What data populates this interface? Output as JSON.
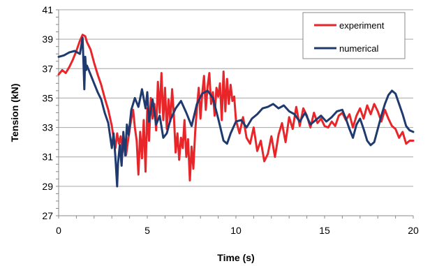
{
  "chart_data": {
    "type": "line",
    "title": "",
    "xlabel": "Time (s)",
    "ylabel": "Tension (kN)",
    "xlim": [
      0,
      20
    ],
    "ylim": [
      27,
      41
    ],
    "xticks": [
      0,
      5,
      10,
      15,
      20
    ],
    "yticks": [
      27,
      29,
      31,
      33,
      35,
      37,
      39,
      41
    ],
    "grid": "horizontal",
    "legend_position": "top-right",
    "series": [
      {
        "name": "experiment",
        "color": "#e8262a",
        "x": [
          0,
          0.2,
          0.4,
          0.6,
          0.8,
          1.0,
          1.2,
          1.35,
          1.5,
          1.6,
          1.8,
          2.0,
          2.2,
          2.4,
          2.6,
          2.8,
          3.0,
          3.1,
          3.2,
          3.3,
          3.4,
          3.5,
          3.6,
          3.7,
          3.8,
          3.9,
          4.0,
          4.1,
          4.2,
          4.3,
          4.4,
          4.5,
          4.6,
          4.7,
          4.8,
          4.9,
          5.0,
          5.1,
          5.2,
          5.3,
          5.4,
          5.5,
          5.6,
          5.7,
          5.8,
          5.9,
          6.0,
          6.1,
          6.2,
          6.3,
          6.4,
          6.5,
          6.6,
          6.7,
          6.8,
          6.9,
          7.0,
          7.1,
          7.2,
          7.3,
          7.4,
          7.5,
          7.6,
          7.7,
          7.8,
          7.9,
          8.0,
          8.1,
          8.2,
          8.3,
          8.4,
          8.5,
          8.6,
          8.7,
          8.8,
          8.9,
          9.0,
          9.1,
          9.2,
          9.3,
          9.4,
          9.5,
          9.6,
          9.7,
          9.8,
          9.9,
          10.0,
          10.2,
          10.4,
          10.6,
          10.8,
          11.0,
          11.2,
          11.4,
          11.6,
          11.8,
          12.0,
          12.2,
          12.4,
          12.6,
          12.8,
          13.0,
          13.2,
          13.4,
          13.6,
          13.8,
          14.0,
          14.2,
          14.4,
          14.6,
          14.8,
          15.0,
          15.2,
          15.4,
          15.6,
          15.8,
          16.0,
          16.2,
          16.4,
          16.6,
          16.8,
          17.0,
          17.2,
          17.4,
          17.6,
          17.8,
          18.0,
          18.2,
          18.4,
          18.6,
          18.8,
          19.0,
          19.2,
          19.4,
          19.6,
          19.8,
          20.0
        ],
        "values": [
          36.6,
          36.9,
          36.7,
          37.1,
          37.6,
          38.2,
          38.9,
          39.3,
          39.2,
          38.8,
          38.3,
          37.4,
          36.6,
          35.9,
          35.0,
          34.2,
          33.1,
          32.3,
          31.6,
          32.6,
          31.9,
          32.4,
          31.3,
          32.2,
          31.1,
          32.0,
          32.8,
          33.6,
          34.2,
          33.0,
          32.1,
          29.8,
          32.7,
          30.9,
          33.5,
          30.0,
          34.3,
          32.1,
          35.0,
          33.6,
          34.6,
          32.8,
          36.1,
          34.0,
          36.7,
          33.5,
          35.7,
          32.9,
          34.9,
          33.4,
          35.6,
          33.8,
          31.3,
          32.6,
          30.8,
          32.3,
          31.6,
          33.5,
          31.0,
          32.2,
          29.4,
          31.7,
          30.2,
          32.7,
          34.3,
          35.7,
          33.6,
          35.3,
          36.5,
          34.2,
          35.8,
          36.7,
          34.6,
          35.4,
          33.8,
          35.7,
          35.1,
          36.0,
          33.5,
          36.8,
          34.1,
          36.3,
          34.6,
          35.9,
          34.8,
          35.1,
          33.5,
          32.6,
          33.7,
          32.3,
          31.9,
          33.0,
          31.4,
          32.1,
          30.7,
          31.2,
          32.4,
          31.0,
          32.5,
          33.3,
          32.0,
          33.7,
          32.9,
          34.4,
          33.1,
          34.3,
          33.8,
          33.0,
          34.0,
          33.3,
          33.6,
          33.1,
          33.0,
          33.4,
          33.1,
          33.8,
          34.0,
          33.5,
          33.9,
          33.0,
          33.8,
          34.3,
          33.6,
          34.5,
          33.9,
          34.6,
          34.1,
          33.4,
          34.2,
          33.6,
          33.1,
          32.9,
          32.3,
          32.7,
          31.9,
          32.1,
          32.1
        ]
      },
      {
        "name": "numerical",
        "color": "#1f3a6e",
        "x": [
          0,
          0.3,
          0.6,
          0.9,
          1.2,
          1.35,
          1.4,
          1.45,
          1.5,
          1.55,
          1.6,
          1.8,
          2.0,
          2.2,
          2.4,
          2.6,
          2.8,
          3.0,
          3.1,
          3.2,
          3.3,
          3.35,
          3.45,
          3.55,
          3.65,
          3.75,
          3.85,
          3.95,
          4.1,
          4.3,
          4.5,
          4.7,
          4.9,
          5.0,
          5.1,
          5.3,
          5.5,
          5.7,
          5.9,
          6.1,
          6.3,
          6.6,
          6.9,
          7.2,
          7.5,
          7.8,
          8.1,
          8.4,
          8.7,
          9.0,
          9.3,
          9.5,
          9.7,
          10.0,
          10.3,
          10.6,
          10.9,
          11.2,
          11.5,
          11.8,
          12.1,
          12.4,
          12.7,
          13.0,
          13.3,
          13.6,
          13.9,
          14.2,
          14.5,
          14.8,
          15.1,
          15.4,
          15.7,
          16.0,
          16.2,
          16.4,
          16.6,
          16.8,
          17.0,
          17.2,
          17.4,
          17.6,
          17.8,
          18.0,
          18.2,
          18.4,
          18.6,
          18.8,
          19.0,
          19.2,
          19.4,
          19.6,
          19.8,
          20.0
        ],
        "values": [
          37.8,
          37.9,
          38.1,
          38.2,
          38.0,
          39.1,
          37.4,
          35.6,
          37.8,
          36.9,
          37.2,
          36.6,
          36.0,
          35.4,
          34.9,
          34.0,
          33.3,
          31.6,
          32.6,
          31.0,
          29.0,
          30.6,
          31.8,
          30.4,
          32.7,
          31.1,
          33.2,
          32.5,
          34.2,
          35.0,
          34.4,
          35.6,
          34.3,
          35.4,
          33.4,
          34.9,
          33.2,
          33.8,
          32.3,
          32.6,
          33.5,
          34.3,
          34.8,
          34.0,
          33.1,
          34.6,
          35.3,
          35.5,
          35.0,
          33.6,
          32.1,
          31.9,
          32.6,
          33.4,
          33.5,
          33.0,
          33.6,
          33.9,
          34.3,
          34.4,
          34.6,
          34.3,
          34.5,
          34.1,
          33.9,
          33.4,
          34.0,
          33.2,
          33.5,
          33.8,
          33.4,
          33.7,
          34.1,
          34.2,
          33.6,
          32.9,
          32.3,
          33.2,
          33.6,
          32.9,
          32.1,
          31.8,
          32.0,
          32.9,
          33.8,
          34.6,
          35.2,
          35.5,
          35.3,
          34.6,
          33.9,
          33.1,
          32.8,
          32.7
        ]
      }
    ]
  }
}
